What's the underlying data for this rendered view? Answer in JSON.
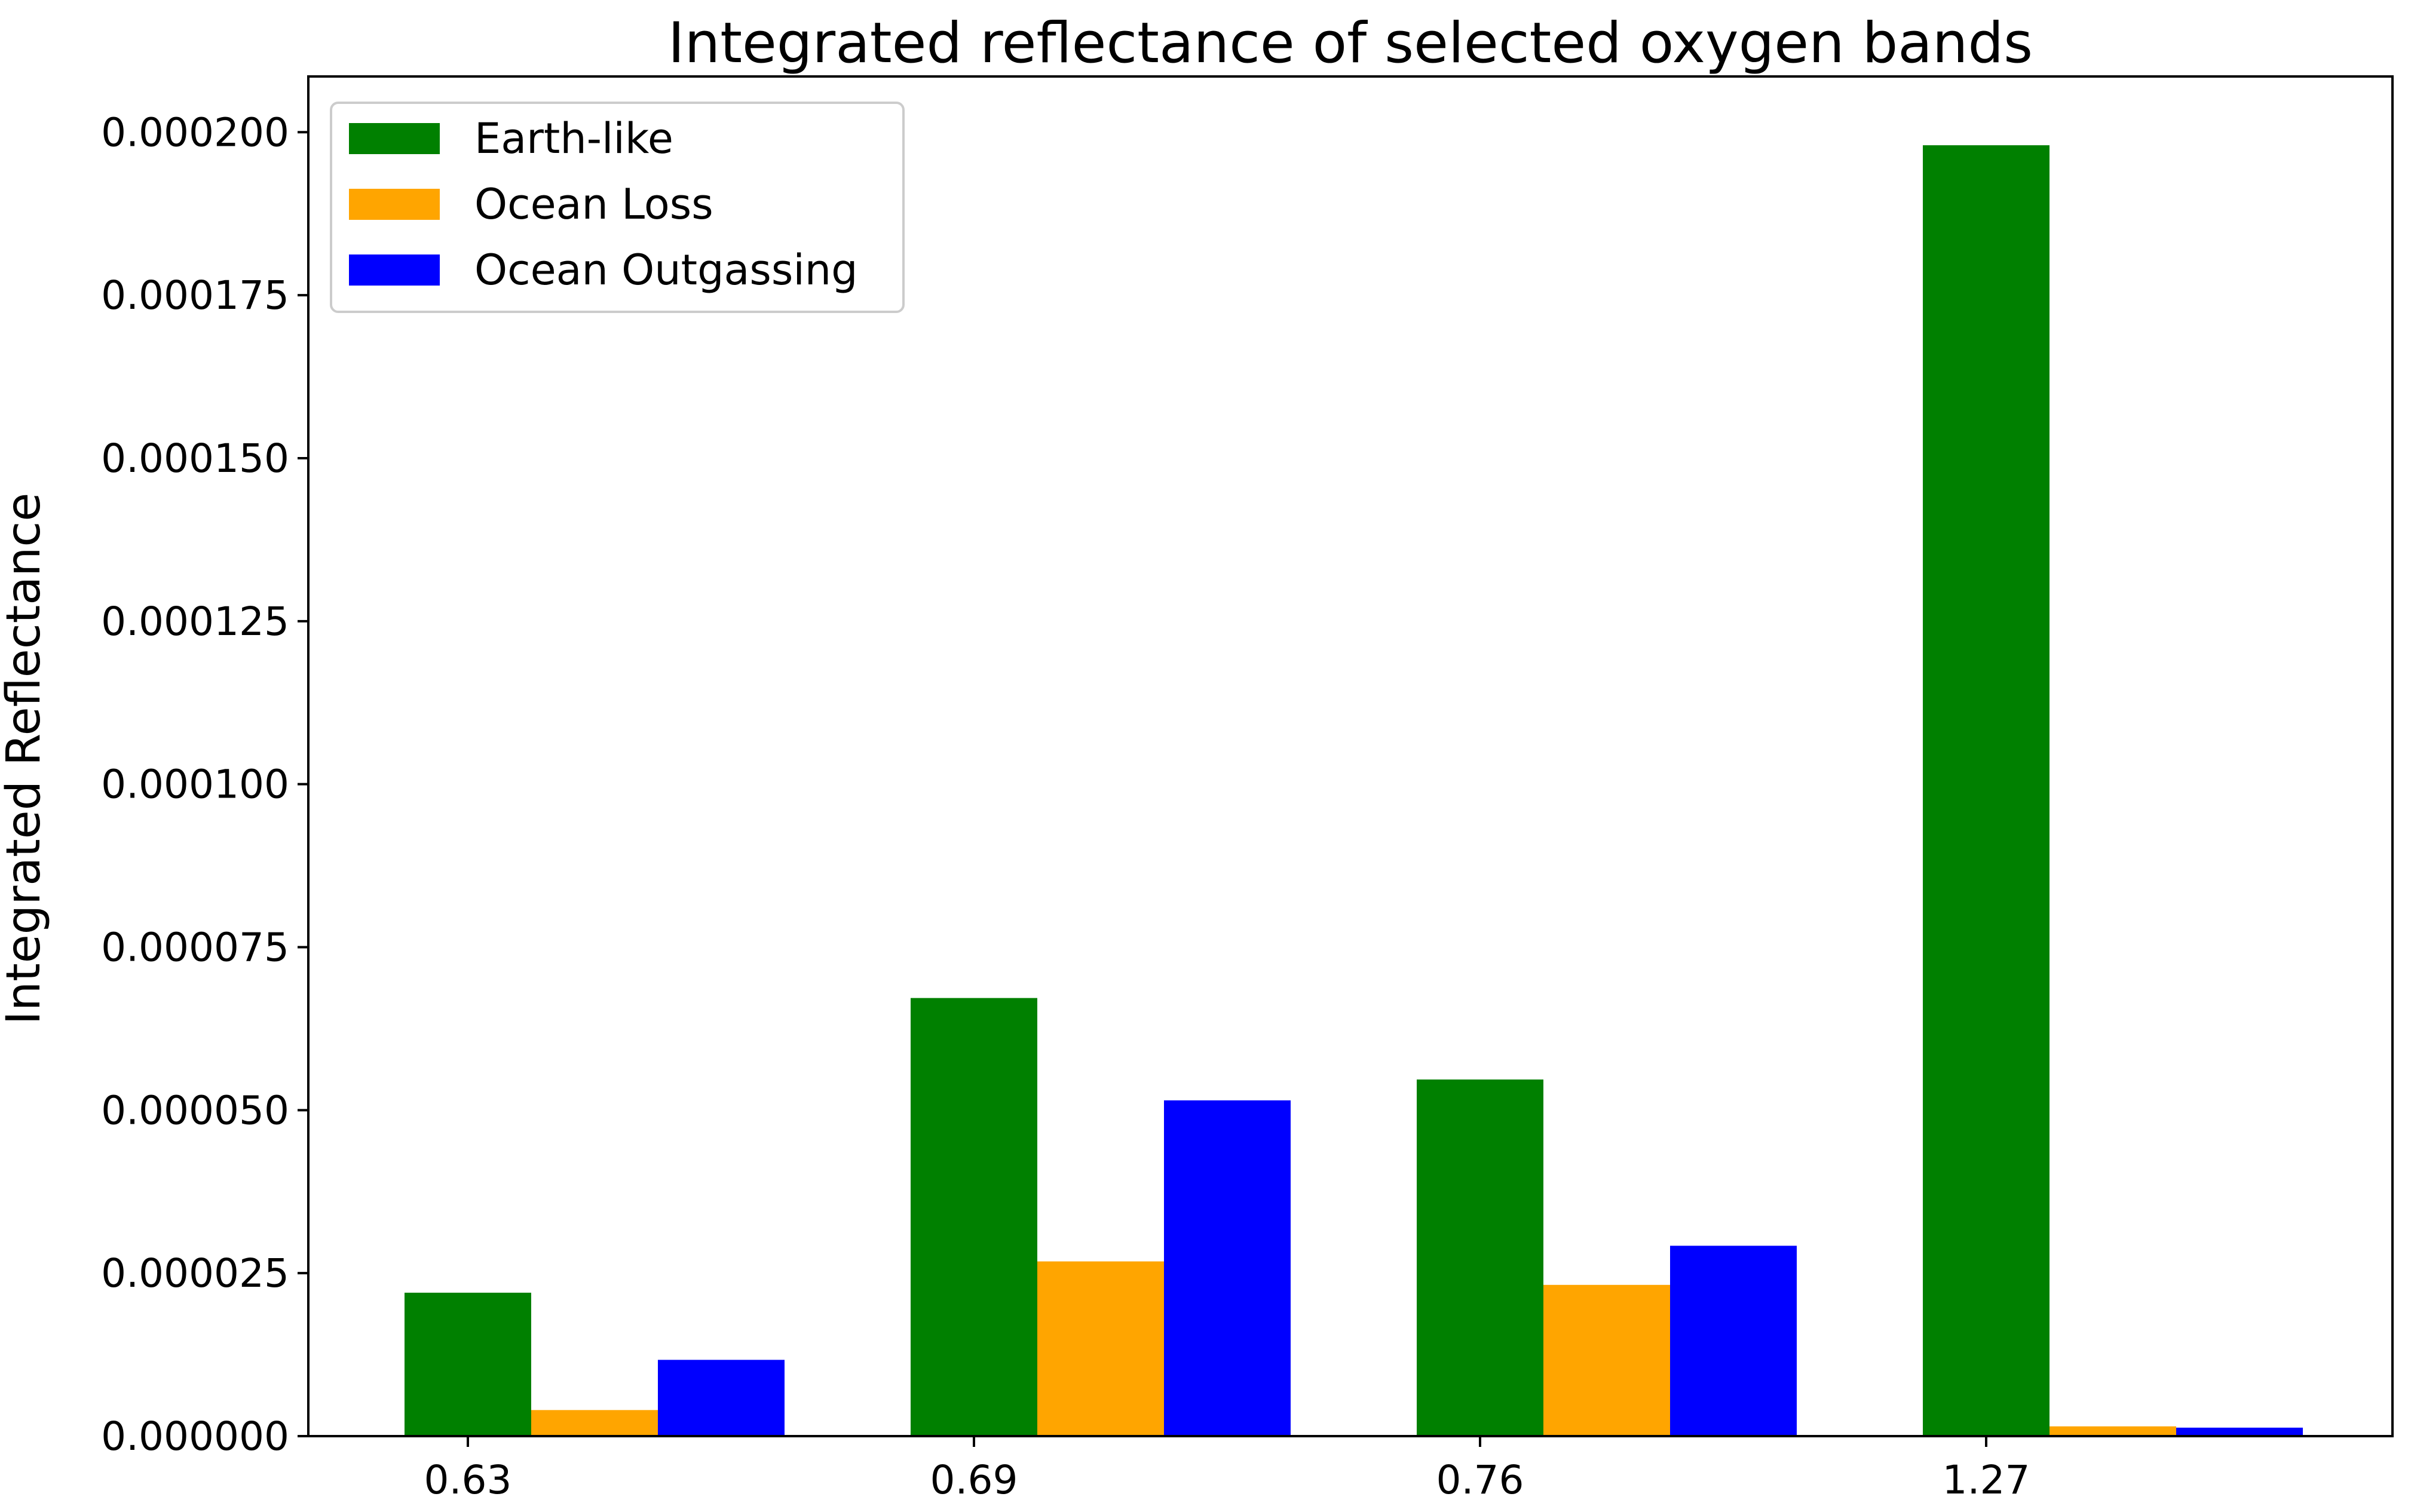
{
  "chart_data": {
    "type": "bar",
    "title": "Integrated reflectance of selected oxygen bands",
    "xlabel": "",
    "ylabel": "Integrated Reflectance",
    "categories": [
      "0.63",
      "0.69",
      "0.76",
      "1.27"
    ],
    "series": [
      {
        "name": "Earth-like",
        "color": "#008000",
        "values": [
          2.2e-05,
          6.72e-05,
          5.47e-05,
          0.000198
        ]
      },
      {
        "name": "Ocean Loss",
        "color": "#FFA500",
        "values": [
          4e-06,
          2.68e-05,
          2.32e-05,
          1.5e-06
        ]
      },
      {
        "name": "Ocean Outgassing",
        "color": "#0000FF",
        "values": [
          1.17e-05,
          5.15e-05,
          2.92e-05,
          1.3e-06
        ]
      }
    ],
    "ylim": [
      0,
      0.00020855
    ],
    "yticks": [
      0.0,
      2.5e-05,
      5e-05,
      7.5e-05,
      0.0001,
      0.000125,
      0.00015,
      0.000175,
      0.0002
    ],
    "ytick_labels": [
      "0.000000",
      "0.000025",
      "0.000050",
      "0.000075",
      "0.000100",
      "0.000125",
      "0.000150",
      "0.000175",
      "0.000200"
    ],
    "grid": false,
    "legend_position": "top-left"
  }
}
